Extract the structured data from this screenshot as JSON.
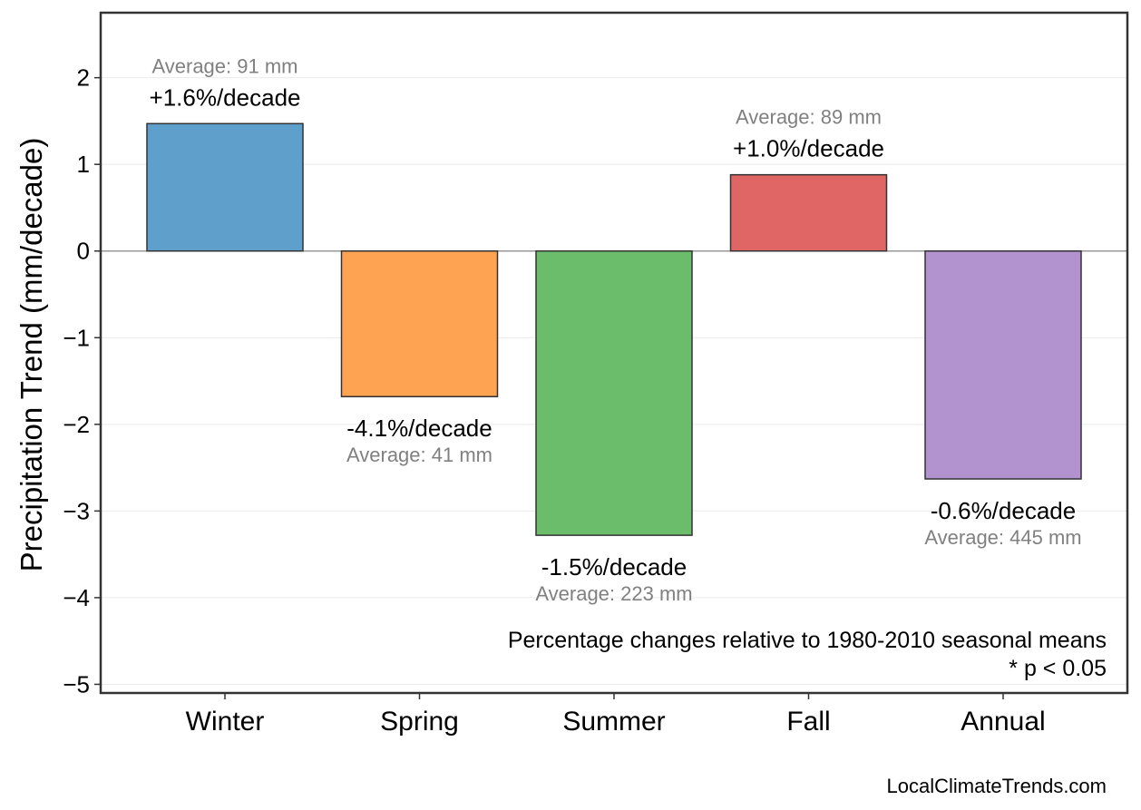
{
  "chart_data": {
    "type": "bar",
    "title": "",
    "xlabel": "",
    "ylabel": "Precipitation Trend (mm/decade)",
    "ylim": [
      -5.1,
      2.75
    ],
    "yticks": [
      2,
      1,
      0,
      -1,
      -2,
      -3,
      -4,
      -5
    ],
    "ytick_labels": [
      "2",
      "1",
      "0",
      "−1",
      "−2",
      "−3",
      "−4",
      "−5"
    ],
    "grid": "horizontal",
    "categories": [
      "Winter",
      "Spring",
      "Summer",
      "Fall",
      "Annual"
    ],
    "values": [
      1.47,
      -1.68,
      -3.28,
      0.88,
      -2.63
    ],
    "colors": [
      "#5e9fcc",
      "#fea352",
      "#6bbd6b",
      "#e06666",
      "#b293cf"
    ],
    "pct_labels": [
      "+1.6%/decade",
      "-4.1%/decade",
      "-1.5%/decade",
      "+1.0%/decade",
      "-0.6%/decade"
    ],
    "avg_labels": [
      "Average: 91 mm",
      "Average: 41 mm",
      "Average: 223 mm",
      "Average: 89 mm",
      "Average: 445 mm"
    ],
    "annotation_lines": [
      "Percentage changes relative to 1980-2010 seasonal means",
      "* p < 0.05"
    ]
  },
  "source": "LocalClimateTrends.com"
}
